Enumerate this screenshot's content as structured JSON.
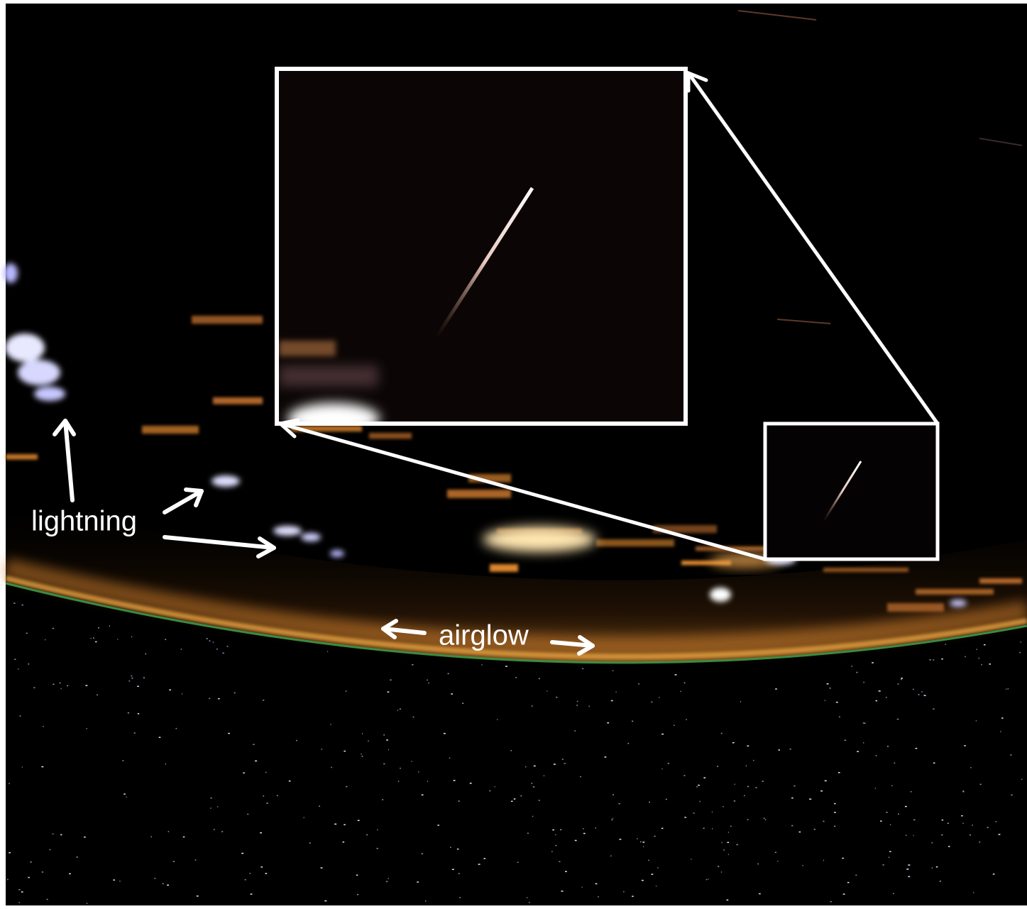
{
  "annotations": [
    {
      "text": "lightning"
    },
    {
      "text": "airglow"
    }
  ]
}
